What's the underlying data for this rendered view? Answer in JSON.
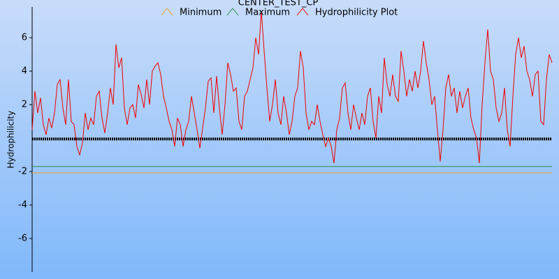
{
  "chart_data": {
    "type": "line",
    "title": "CENTER_TEST_CP",
    "y_label": "Hydrophilicity",
    "ylim": [
      -7.9,
      7.8
    ],
    "yticks": [
      6,
      4,
      2,
      -2,
      -4,
      -6
    ],
    "series": [
      {
        "name": "Minimum",
        "color": "#f0a030",
        "value": -2.08
      },
      {
        "name": "Maximum",
        "color": "#209040",
        "value": -1.7
      },
      {
        "name": "Hydrophilicity Plot",
        "color": "#ee0000",
        "values": [
          0.5,
          2.8,
          1.5,
          2.4,
          0.8,
          0.2,
          1.2,
          0.6,
          1.5,
          3.2,
          3.5,
          1.8,
          0.8,
          3.5,
          1.0,
          0.8,
          -0.5,
          -1.0,
          -0.3,
          1.5,
          0.5,
          1.2,
          0.8,
          2.5,
          2.8,
          1.2,
          0.3,
          1.5,
          3.0,
          2.0,
          5.6,
          4.2,
          4.8,
          1.8,
          0.8,
          1.8,
          2.0,
          1.2,
          3.2,
          2.6,
          1.8,
          3.5,
          2.0,
          4.0,
          4.3,
          4.5,
          3.8,
          2.5,
          1.8,
          1.0,
          0.5,
          -0.5,
          1.2,
          0.8,
          -0.5,
          0.5,
          1.0,
          2.5,
          1.5,
          0.5,
          -0.6,
          0.6,
          1.8,
          3.4,
          3.6,
          1.5,
          3.7,
          1.8,
          0.2,
          2.0,
          4.5,
          3.8,
          2.8,
          3.0,
          1.0,
          0.5,
          2.5,
          2.8,
          3.5,
          4.2,
          6.0,
          5.0,
          7.6,
          5.2,
          3.0,
          1.0,
          2.0,
          3.5,
          1.5,
          0.8,
          2.5,
          1.5,
          0.2,
          1.0,
          2.5,
          3.0,
          5.2,
          4.2,
          1.5,
          0.5,
          1.0,
          0.8,
          2.0,
          1.0,
          0.2,
          -0.5,
          0.0,
          -0.5,
          -1.5,
          0.5,
          1.2,
          3.0,
          3.3,
          1.5,
          0.5,
          2.0,
          1.2,
          0.5,
          1.5,
          0.8,
          2.5,
          3.0,
          1.0,
          0.0,
          2.5,
          1.5,
          4.8,
          3.2,
          2.5,
          3.8,
          2.5,
          2.2,
          5.2,
          4.0,
          2.5,
          3.5,
          2.8,
          4.0,
          3.0,
          4.0,
          5.8,
          4.5,
          3.5,
          2.0,
          2.5,
          0.5,
          -1.4,
          0.5,
          3.0,
          3.8,
          2.5,
          3.0,
          1.5,
          2.8,
          1.8,
          2.5,
          3.0,
          1.2,
          0.5,
          0.0,
          -1.5,
          2.0,
          4.5,
          6.5,
          4.0,
          3.5,
          1.8,
          1.0,
          1.5,
          3.0,
          0.5,
          -0.5,
          2.5,
          5.0,
          6.0,
          4.8,
          5.5,
          4.0,
          3.5,
          2.5,
          3.8,
          4.0,
          1.0,
          0.8,
          3.5,
          5.0,
          4.5
        ]
      }
    ],
    "zero_markers": {
      "value": -0.05,
      "color": "#000000"
    }
  }
}
